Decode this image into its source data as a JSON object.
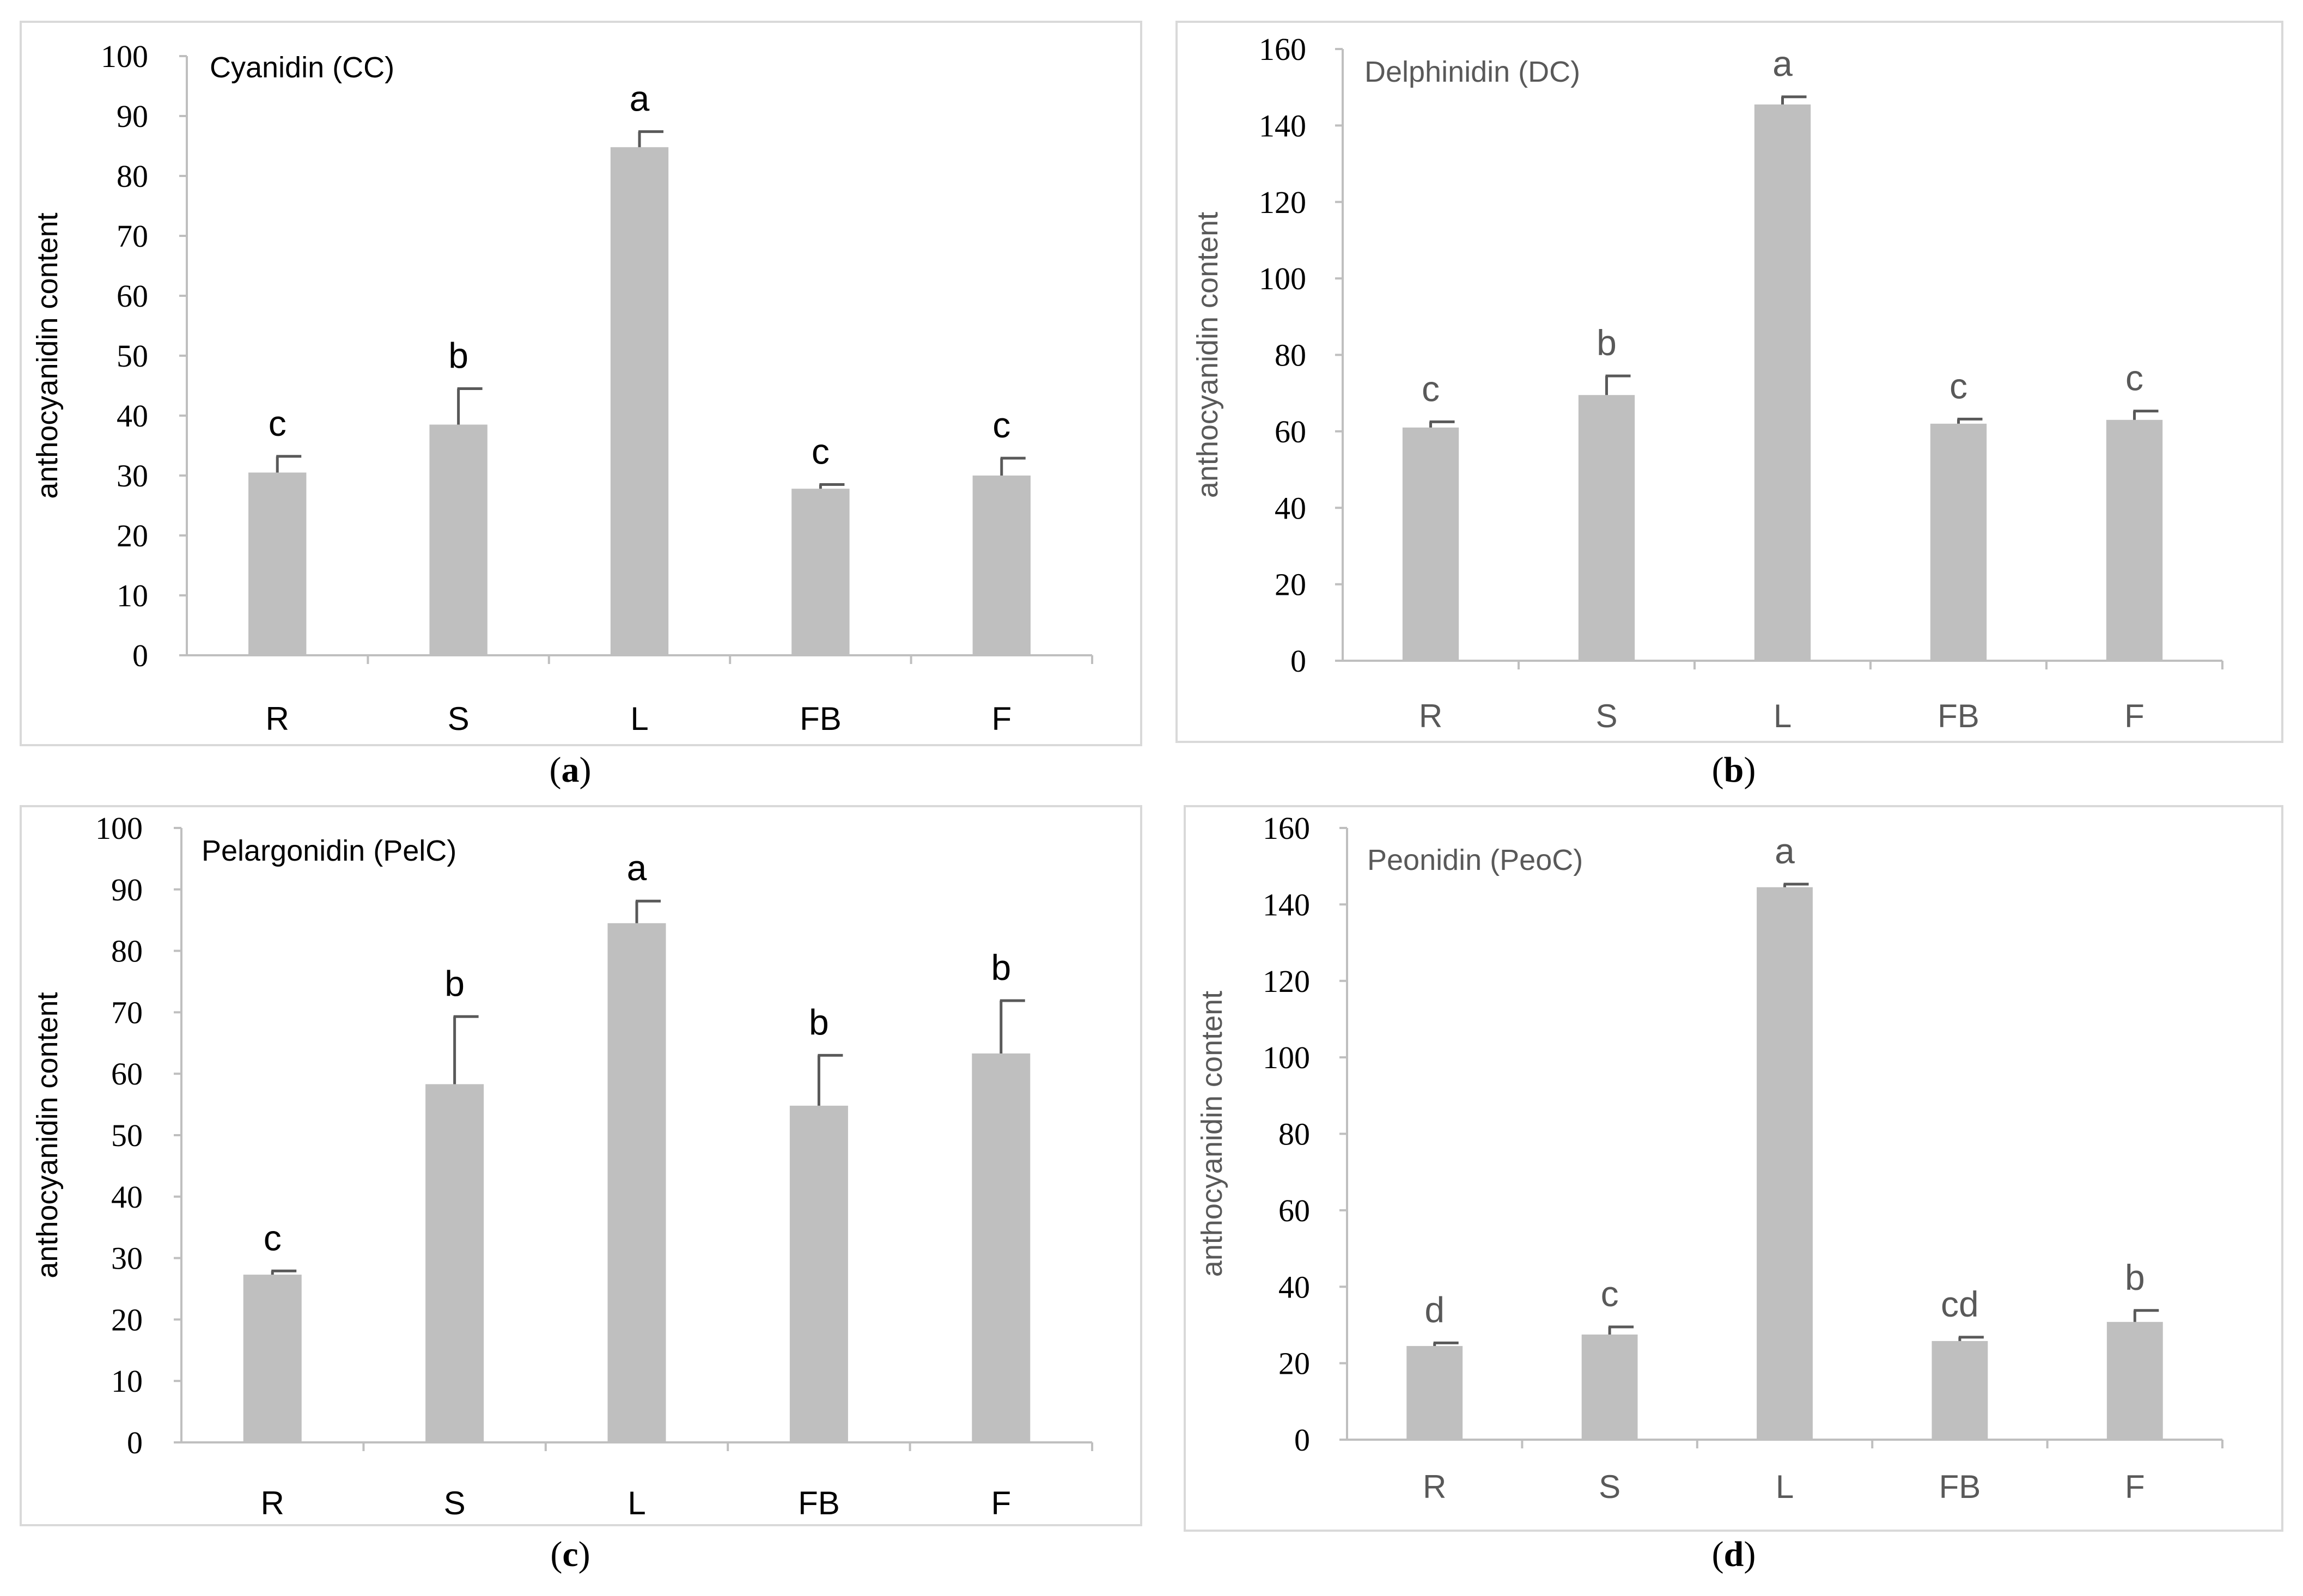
{
  "chart_data": [
    {
      "type": "bar",
      "panel": "a",
      "title": "Cyanidin (CC)",
      "caption_letter": "a",
      "ylabel": "anthocyanidin content",
      "xlabel": "",
      "ylim": [
        0,
        100
      ],
      "ytick_step": 10,
      "categories": [
        "R",
        "S",
        "L",
        "FB",
        "F"
      ],
      "values": [
        30.5,
        38.5,
        84.8,
        27.8,
        30.0
      ],
      "errors": [
        2.7,
        6.0,
        2.6,
        0.7,
        2.9
      ],
      "letters": [
        "c",
        "b",
        "a",
        "c",
        "c"
      ],
      "grid": false,
      "text_color": "#000000",
      "axis_color": "#bfbfbf",
      "bar_color": "#bfbfbf",
      "error_color": "#595959"
    },
    {
      "type": "bar",
      "panel": "b",
      "title": "Delphinidin (DC)",
      "caption_letter": "b",
      "ylabel": "anthocyanidin content",
      "xlabel": "",
      "ylim": [
        0,
        160
      ],
      "ytick_step": 20,
      "categories": [
        "R",
        "S",
        "L",
        "FB",
        "F"
      ],
      "values": [
        61.0,
        69.5,
        145.5,
        62.0,
        63.0
      ],
      "errors": [
        1.5,
        5.0,
        2.0,
        1.2,
        2.3
      ],
      "letters": [
        "c",
        "b",
        "a",
        "c",
        "c"
      ],
      "grid": false,
      "text_color": "#595959",
      "axis_color": "#bfbfbf",
      "bar_color": "#bfbfbf",
      "error_color": "#595959"
    },
    {
      "type": "bar",
      "panel": "c",
      "title": "Pelargonidin (PelC)",
      "caption_letter": "c",
      "ylabel": "anthocyanidin content",
      "xlabel": "",
      "ylim": [
        0,
        100
      ],
      "ytick_step": 10,
      "categories": [
        "R",
        "S",
        "L",
        "FB",
        "F"
      ],
      "values": [
        27.3,
        58.3,
        84.5,
        54.8,
        63.3
      ],
      "errors": [
        0.6,
        11.0,
        3.6,
        8.2,
        8.6
      ],
      "letters": [
        "c",
        "b",
        "a",
        "b",
        "b"
      ],
      "grid": false,
      "text_color": "#000000",
      "axis_color": "#bfbfbf",
      "bar_color": "#bfbfbf",
      "error_color": "#595959"
    },
    {
      "type": "bar",
      "panel": "d",
      "title": "Peonidin (PeoC)",
      "caption_letter": "d",
      "ylabel": "anthocyanidin content",
      "xlabel": "",
      "ylim": [
        0,
        160
      ],
      "ytick_step": 20,
      "categories": [
        "R",
        "S",
        "L",
        "FB",
        "F"
      ],
      "values": [
        24.5,
        27.5,
        144.5,
        25.8,
        30.8
      ],
      "errors": [
        0.8,
        2.0,
        0.8,
        1.0,
        3.0
      ],
      "letters": [
        "d",
        "c",
        "a",
        "cd",
        "b"
      ],
      "grid": false,
      "text_color": "#595959",
      "axis_color": "#bfbfbf",
      "bar_color": "#bfbfbf",
      "error_color": "#595959"
    }
  ]
}
